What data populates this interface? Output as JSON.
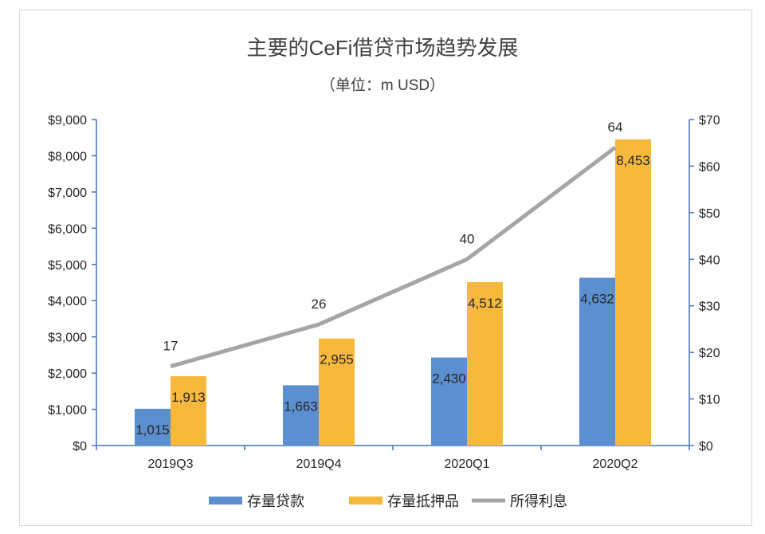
{
  "chart_data": {
    "type": "bar+line",
    "title": "主要的CeFi借贷市场趋势发展",
    "subtitle": "（单位：m USD）",
    "categories": [
      "2019Q3",
      "2019Q4",
      "2020Q1",
      "2020Q2"
    ],
    "series": [
      {
        "name": "存量贷款",
        "type": "bar",
        "axis": "left",
        "color": "#5b8fd0",
        "values": [
          1015,
          1663,
          2430,
          4632
        ],
        "labels": [
          "1,015",
          "1,663",
          "2,430",
          "4,632"
        ]
      },
      {
        "name": "存量抵押品",
        "type": "bar",
        "axis": "left",
        "color": "#f6b93b",
        "values": [
          1913,
          2955,
          4512,
          8453
        ],
        "labels": [
          "1,913",
          "2,955",
          "4,512",
          "8,453"
        ]
      },
      {
        "name": "所得利息",
        "type": "line",
        "axis": "right",
        "color": "#a5a5a5",
        "values": [
          17,
          26,
          40,
          64
        ],
        "labels": [
          "17",
          "26",
          "40",
          "64"
        ]
      }
    ],
    "y_left": {
      "range": [
        0,
        9000
      ],
      "ticks": [
        "$0",
        "$1,000",
        "$2,000",
        "$3,000",
        "$4,000",
        "$5,000",
        "$6,000",
        "$7,000",
        "$8,000",
        "$9,000"
      ]
    },
    "y_right": {
      "range": [
        0,
        70
      ],
      "ticks": [
        "$0",
        "$10",
        "$20",
        "$30",
        "$40",
        "$50",
        "$60",
        "$70"
      ]
    },
    "axis_color": "#4472c4",
    "grid": false,
    "legend_position": "bottom"
  }
}
